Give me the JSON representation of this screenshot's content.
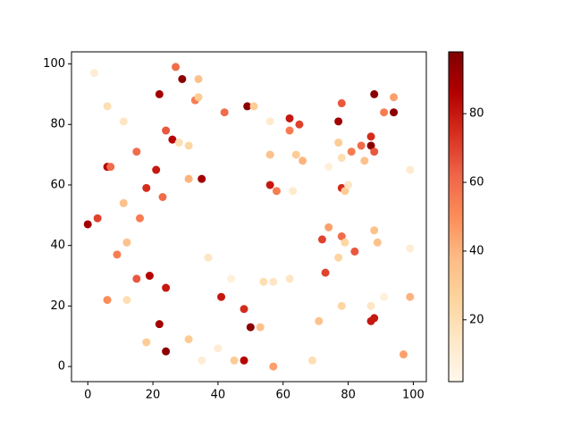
{
  "chart_data": {
    "type": "scatter",
    "x": [
      2,
      6,
      11,
      6,
      7,
      0,
      3,
      11,
      12,
      9,
      6,
      12,
      15,
      18,
      19,
      24,
      22,
      24,
      16,
      18,
      15,
      21,
      23,
      22,
      27,
      29,
      33,
      34,
      34,
      24,
      26,
      28,
      31,
      31,
      35,
      37,
      31,
      35,
      40,
      41,
      44,
      45,
      48,
      48,
      50,
      53,
      54,
      57,
      57,
      62,
      69,
      71,
      42,
      49,
      51,
      56,
      62,
      62,
      65,
      56,
      64,
      66,
      56,
      58,
      63,
      74,
      77,
      78,
      77,
      78,
      81,
      84,
      85,
      87,
      87,
      88,
      88,
      91,
      94,
      94,
      99,
      78,
      79,
      80,
      74,
      72,
      78,
      77,
      79,
      82,
      88,
      89,
      73,
      99,
      78,
      87,
      91,
      87,
      88,
      99,
      97
    ],
    "y": [
      97,
      86,
      81,
      66,
      66,
      47,
      49,
      54,
      41,
      37,
      22,
      22,
      29,
      8,
      30,
      26,
      14,
      5,
      49,
      59,
      71,
      65,
      56,
      90,
      99,
      95,
      88,
      89,
      95,
      78,
      75,
      74,
      73,
      62,
      62,
      36,
      9,
      2,
      6,
      23,
      29,
      2,
      2,
      19,
      13,
      13,
      28,
      28,
      0,
      29,
      2,
      15,
      84,
      86,
      86,
      81,
      82,
      78,
      80,
      70,
      70,
      68,
      60,
      58,
      58,
      66,
      81,
      87,
      74,
      69,
      71,
      73,
      68,
      73,
      76,
      71,
      90,
      84,
      89,
      84,
      65,
      59,
      58,
      60,
      46,
      42,
      43,
      36,
      41,
      38,
      45,
      41,
      31,
      39,
      20,
      20,
      23,
      15,
      16,
      23,
      4
    ],
    "c": [
      10,
      20,
      15,
      85,
      60,
      90,
      70,
      35,
      35,
      55,
      50,
      20,
      65,
      30,
      85,
      80,
      90,
      95,
      55,
      75,
      60,
      80,
      60,
      90,
      60,
      95,
      55,
      30,
      35,
      65,
      85,
      20,
      25,
      40,
      90,
      15,
      30,
      10,
      10,
      80,
      8,
      30,
      85,
      75,
      95,
      35,
      20,
      15,
      45,
      15,
      20,
      35,
      60,
      95,
      30,
      12,
      80,
      55,
      70,
      35,
      30,
      40,
      80,
      55,
      12,
      8,
      90,
      65,
      30,
      20,
      55,
      60,
      35,
      95,
      75,
      65,
      95,
      55,
      45,
      95,
      12,
      75,
      30,
      15,
      45,
      70,
      60,
      25,
      25,
      65,
      35,
      35,
      70,
      10,
      25,
      15,
      8,
      80,
      80,
      40,
      45
    ],
    "colormap": "OrRd",
    "xlim": [
      -5,
      104
    ],
    "ylim": [
      -5,
      104
    ],
    "xticks": [
      0,
      20,
      40,
      60,
      80,
      100
    ],
    "yticks": [
      0,
      20,
      40,
      60,
      80,
      100
    ],
    "clim": [
      2,
      98
    ],
    "cticks": [
      20,
      40,
      60,
      80
    ]
  }
}
